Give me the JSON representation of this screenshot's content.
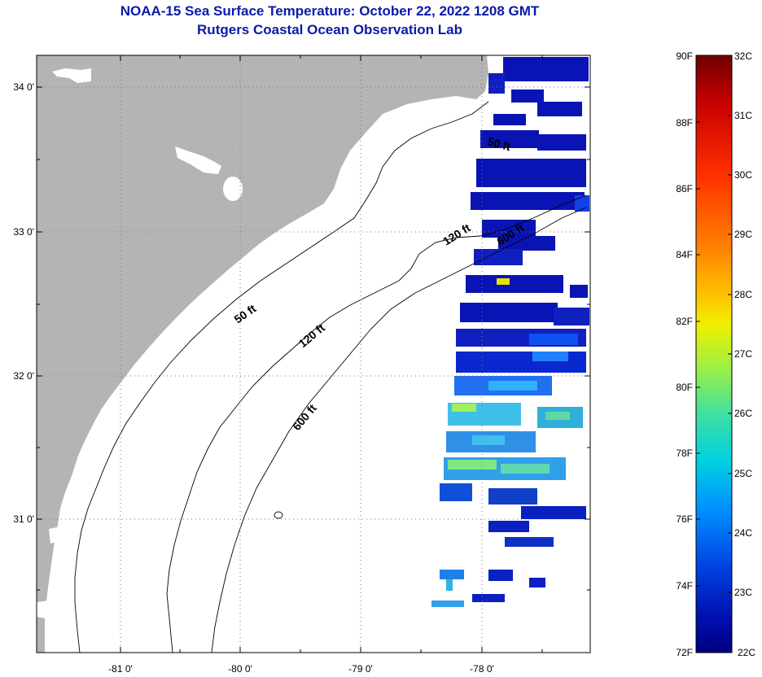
{
  "title": {
    "line1": "NOAA-15 Sea Surface Temperature:  October 22, 2022 1208 GMT",
    "line2": "Rutgers Coastal Ocean Observation Lab"
  },
  "map": {
    "colors": {
      "land": "#b4b4b4",
      "ocean": "#ffffff",
      "coast": "#000000",
      "grid": "#777777"
    },
    "lat_ticks": [
      "34 0'",
      "33 0'",
      "32 0'",
      "31 0'"
    ],
    "lon_ticks": [
      "-81 0'",
      "-80 0'",
      "-79 0'",
      "-78 0'"
    ],
    "contours": [
      "50 ft",
      "120 ft",
      "600 ft",
      "50 ft",
      "120 ft",
      "600 ft"
    ]
  },
  "colorbar": {
    "f_labels": [
      "90F",
      "88F",
      "86F",
      "84F",
      "82F",
      "80F",
      "78F",
      "76F",
      "74F",
      "72F"
    ],
    "c_labels": [
      "32C",
      "31C",
      "30C",
      "29C",
      "28C",
      "27C",
      "26C",
      "25C",
      "24C",
      "23C",
      "22C"
    ],
    "gradient": [
      "#6e0000",
      "#c80000",
      "#ff3000",
      "#ff8000",
      "#ffc000",
      "#f0f000",
      "#a0f040",
      "#40e0a0",
      "#00d0e0",
      "#0090ff",
      "#0040e0",
      "#0010b0",
      "#000080"
    ]
  }
}
